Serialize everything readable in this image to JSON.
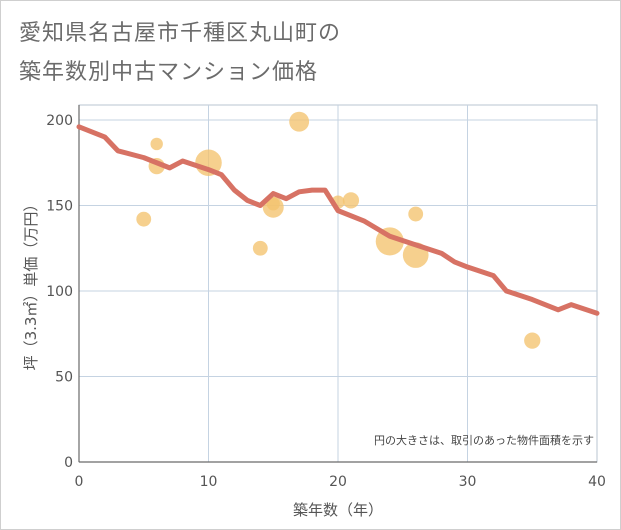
{
  "title_line1": "愛知県名古屋市千種区丸山町の",
  "title_line2": "築年数別中古マンション価格",
  "chart_data": {
    "type": "scatter",
    "xlabel": "築年数（年）",
    "ylabel": "坪（3.3㎡）単価（万円）",
    "xlim": [
      0,
      40
    ],
    "ylim": [
      0,
      210
    ],
    "x_ticks": [
      0,
      10,
      20,
      30,
      40
    ],
    "y_ticks": [
      0,
      50,
      100,
      150,
      200
    ],
    "grid": true,
    "note": "円の大きさは、取引のあった物件面積を示す",
    "colors": {
      "bubble": "#f3c36e",
      "line": "#d77264"
    },
    "bubbles": [
      {
        "x": 5,
        "y": 142,
        "size": 1.0
      },
      {
        "x": 6,
        "y": 173,
        "size": 1.2
      },
      {
        "x": 6,
        "y": 186,
        "size": 0.7
      },
      {
        "x": 10,
        "y": 175,
        "size": 3.2
      },
      {
        "x": 14,
        "y": 125,
        "size": 1.0
      },
      {
        "x": 15,
        "y": 149,
        "size": 2.0
      },
      {
        "x": 15,
        "y": 151,
        "size": 0.8
      },
      {
        "x": 17,
        "y": 199,
        "size": 1.8
      },
      {
        "x": 20,
        "y": 152,
        "size": 0.8
      },
      {
        "x": 21,
        "y": 153,
        "size": 1.2
      },
      {
        "x": 24,
        "y": 129,
        "size": 3.6
      },
      {
        "x": 26,
        "y": 145,
        "size": 1.0
      },
      {
        "x": 26,
        "y": 121,
        "size": 3.0
      },
      {
        "x": 35,
        "y": 71,
        "size": 1.2
      }
    ],
    "trend_line": {
      "x": [
        0,
        2,
        3,
        5,
        7,
        8,
        10,
        11,
        12,
        13,
        14,
        15,
        16,
        17,
        18,
        19,
        20,
        22,
        24,
        26,
        28,
        29,
        30,
        32,
        33,
        35,
        37,
        38,
        40
      ],
      "y": [
        196,
        190,
        182,
        178,
        172,
        176,
        171,
        168,
        159,
        153,
        150,
        157,
        154,
        158,
        159,
        159,
        147,
        141,
        132,
        127,
        122,
        117,
        114,
        109,
        100,
        95,
        89,
        92,
        87
      ]
    }
  }
}
